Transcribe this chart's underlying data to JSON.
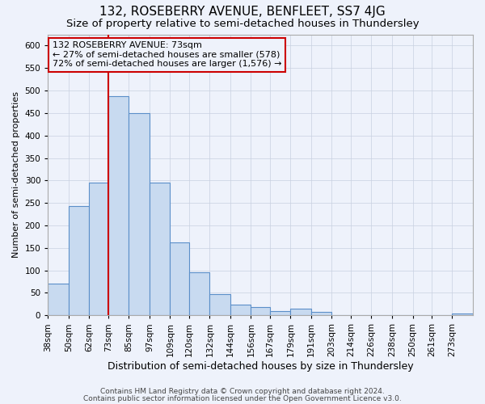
{
  "title": "132, ROSEBERRY AVENUE, BENFLEET, SS7 4JG",
  "subtitle": "Size of property relative to semi-detached houses in Thundersley",
  "xlabel": "Distribution of semi-detached houses by size in Thundersley",
  "ylabel": "Number of semi-detached properties",
  "bin_labels": [
    "38sqm",
    "50sqm",
    "62sqm",
    "73sqm",
    "85sqm",
    "97sqm",
    "109sqm",
    "120sqm",
    "132sqm",
    "144sqm",
    "156sqm",
    "167sqm",
    "179sqm",
    "191sqm",
    "203sqm",
    "214sqm",
    "226sqm",
    "238sqm",
    "250sqm",
    "261sqm",
    "273sqm"
  ],
  "bin_edges": [
    38,
    50,
    62,
    73,
    85,
    97,
    109,
    120,
    132,
    144,
    156,
    167,
    179,
    191,
    203,
    214,
    226,
    238,
    250,
    261,
    273
  ],
  "bar_values": [
    70,
    243,
    295,
    487,
    449,
    295,
    163,
    96,
    48,
    23,
    18,
    10,
    15,
    7,
    0,
    0,
    0,
    0,
    0,
    0,
    4
  ],
  "bar_facecolor": "#c8daf0",
  "bar_edgecolor": "#5b8fc9",
  "grid_color": "#c8d0e0",
  "background_color": "#eef2fb",
  "vline_x_index": 3,
  "vline_color": "#cc0000",
  "annotation_title": "132 ROSEBERRY AVENUE: 73sqm",
  "annotation_line1": "← 27% of semi-detached houses are smaller (578)",
  "annotation_line2": "72% of semi-detached houses are larger (1,576) →",
  "annotation_box_edgecolor": "#cc0000",
  "ylim": [
    0,
    625
  ],
  "yticks": [
    0,
    50,
    100,
    150,
    200,
    250,
    300,
    350,
    400,
    450,
    500,
    550,
    600
  ],
  "footer1": "Contains HM Land Registry data © Crown copyright and database right 2024.",
  "footer2": "Contains public sector information licensed under the Open Government Licence v3.0.",
  "title_fontsize": 11,
  "subtitle_fontsize": 9.5,
  "xlabel_fontsize": 9,
  "ylabel_fontsize": 8,
  "tick_fontsize": 7.5,
  "annotation_fontsize": 8,
  "footer_fontsize": 6.5
}
